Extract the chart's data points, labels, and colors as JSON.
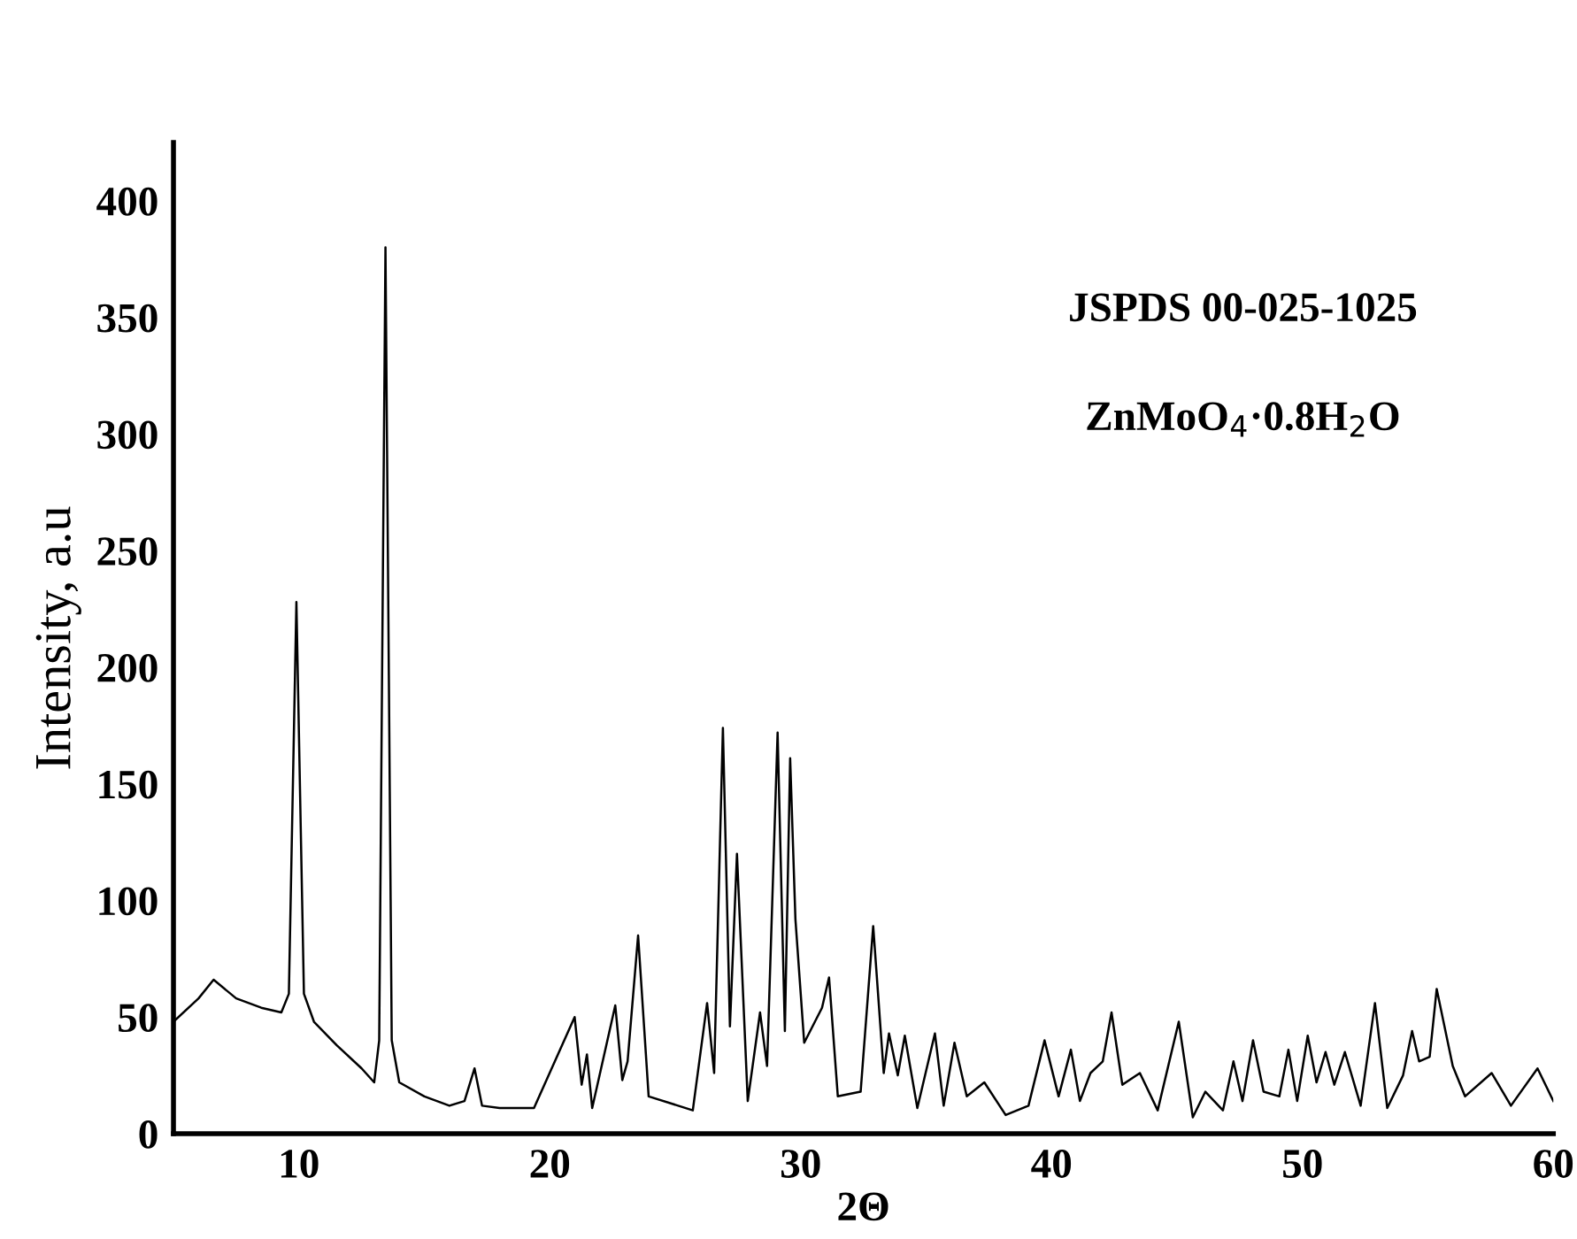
{
  "chart_data": {
    "type": "line",
    "xlabel": "2Θ",
    "ylabel": "Intensity, a.u",
    "annotations": [
      "JSPDS 00-025-1025",
      "ZnMoO$_{4}$·0.8H$_{2}$O"
    ],
    "xlim": [
      5,
      60
    ],
    "ylim": [
      0,
      425
    ],
    "xticks": [
      10,
      20,
      30,
      40,
      50,
      60
    ],
    "yticks": [
      0,
      50,
      100,
      150,
      200,
      250,
      300,
      350,
      400
    ],
    "grid": false,
    "marker": "none",
    "line_style": "solid",
    "series": [
      {
        "color": "#000000",
        "x": [
          5,
          6,
          6.6,
          7.5,
          8.5,
          9.3,
          9.6,
          9.9,
          10.2,
          10.6,
          11.5,
          12.5,
          13.0,
          13.2,
          13.45,
          13.7,
          14.0,
          15,
          16,
          16.6,
          17.0,
          17.3,
          18,
          19.37,
          20.99,
          21.27,
          21.48,
          21.69,
          22.61,
          22.89,
          23.1,
          23.52,
          23.94,
          25.7,
          26.27,
          26.55,
          26.9,
          27.18,
          27.46,
          27.89,
          28.38,
          28.66,
          29.08,
          29.37,
          29.58,
          29.79,
          30.14,
          30.85,
          31.13,
          31.48,
          32.39,
          32.89,
          33.31,
          33.52,
          33.87,
          34.15,
          34.65,
          35.35,
          35.7,
          36.13,
          36.62,
          37.32,
          38.17,
          39.08,
          39.72,
          40.28,
          40.77,
          41.13,
          41.55,
          42.04,
          42.39,
          42.82,
          43.52,
          44.23,
          45.07,
          45.63,
          46.13,
          46.83,
          47.25,
          47.61,
          48.03,
          48.45,
          49.08,
          49.44,
          49.79,
          50.21,
          50.56,
          50.92,
          51.27,
          51.69,
          52.32,
          52.89,
          53.38,
          54.01,
          54.37,
          54.65,
          55.07,
          55.35,
          55.99,
          56.48,
          57.54,
          58.31,
          59.37,
          60
        ],
        "values": [
          48,
          58,
          66,
          58,
          54,
          52,
          60,
          228,
          60,
          48,
          38,
          28,
          22,
          40,
          380,
          40,
          22,
          16,
          12,
          14,
          28,
          12,
          11,
          11,
          50,
          21,
          34,
          11,
          55,
          23,
          31,
          85,
          16,
          10,
          56,
          26,
          174,
          46,
          120,
          14,
          52,
          29,
          172,
          44,
          161,
          92,
          39,
          54,
          67,
          16,
          18,
          89,
          26,
          43,
          25,
          42,
          11,
          43,
          12,
          39,
          16,
          22,
          8,
          12,
          40,
          16,
          36,
          14,
          26,
          31,
          52,
          21,
          26,
          10,
          48,
          7,
          18,
          10,
          31,
          14,
          40,
          18,
          16,
          36,
          14,
          42,
          22,
          35,
          21,
          35,
          12,
          56,
          11,
          25,
          44,
          31,
          33,
          62,
          29,
          16,
          26,
          12,
          28,
          14
        ]
      }
    ]
  }
}
